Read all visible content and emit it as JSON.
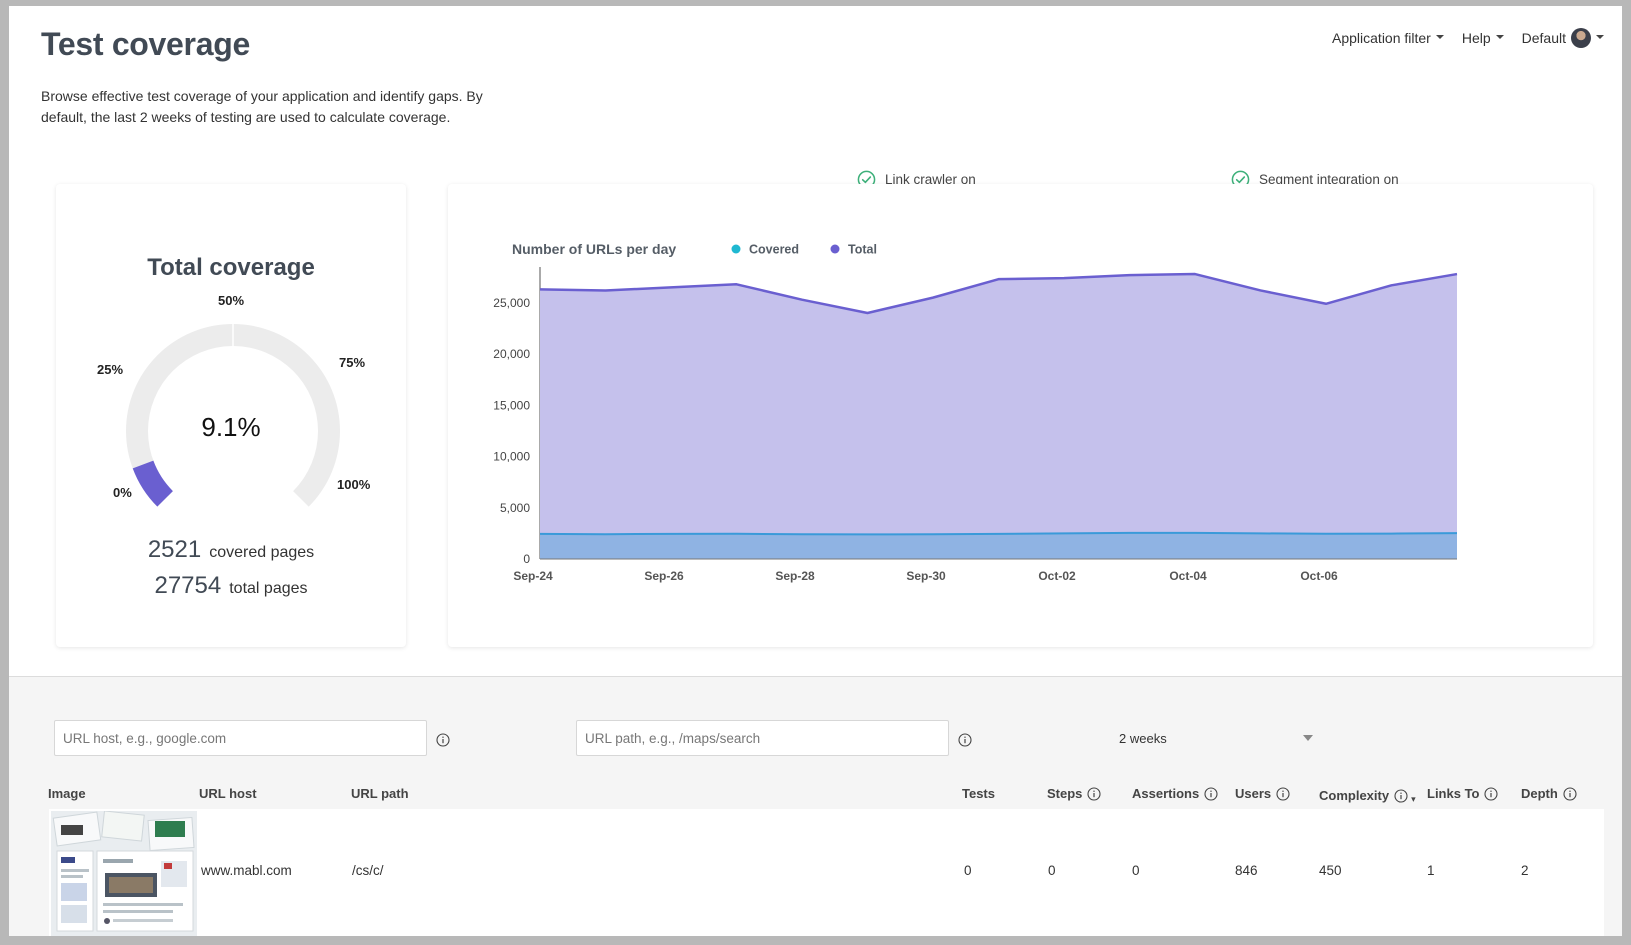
{
  "header": {
    "title": "Test coverage",
    "nav": {
      "app_filter": "Application filter",
      "help": "Help",
      "workspace": "Default"
    }
  },
  "description": "Browse effective test coverage of your application and identify gaps. By default, the last 2 weeks of testing are used to calculate coverage.",
  "status": {
    "link_crawler": "Link crawler on",
    "segment": "Segment integration on"
  },
  "coverage": {
    "title": "Total coverage",
    "percent_label": "9.1%",
    "percent_value": 9.1,
    "ticks": [
      "0%",
      "25%",
      "50%",
      "75%",
      "100%"
    ],
    "covered_count": "2521",
    "covered_label": "covered pages",
    "total_count": "27754",
    "total_label": "total pages"
  },
  "colors": {
    "accent": "#6a5fd0",
    "total_fill": "#c5c1ec",
    "covered_fill": "#8fb3e3",
    "covered_line": "#3a9ad9",
    "covered_legend": "#1fb8d1",
    "gauge_track": "#ececec",
    "check_green": "#3db07a"
  },
  "chart_data": {
    "type": "area",
    "title": "Number of URLs per day",
    "xlabel": "",
    "ylabel": "",
    "ylim": [
      0,
      28000
    ],
    "yticks": [
      0,
      5000,
      10000,
      15000,
      20000,
      25000
    ],
    "ytick_labels": [
      "0",
      "5,000",
      "10,000",
      "15,000",
      "20,000",
      "25,000"
    ],
    "x": [
      "2023-09-24",
      "2023-09-25",
      "2023-09-26",
      "2023-09-27",
      "2023-09-28",
      "2023-09-29",
      "2023-09-30",
      "2023-10-01",
      "2023-10-02",
      "2023-10-03",
      "2023-10-04",
      "2023-10-05",
      "2023-10-06",
      "2023-10-07",
      "2023-10-08"
    ],
    "xtick_labels": [
      "Sep-24",
      "Sep-26",
      "Sep-28",
      "Sep-30",
      "Oct-02",
      "Oct-04",
      "Oct-06"
    ],
    "xtick_index": [
      0,
      2,
      4,
      6,
      8,
      10,
      12
    ],
    "legend_position": "top",
    "series": [
      {
        "name": "Covered",
        "values": [
          2450,
          2420,
          2450,
          2460,
          2420,
          2400,
          2410,
          2450,
          2500,
          2550,
          2550,
          2500,
          2460,
          2480,
          2520
        ]
      },
      {
        "name": "Total",
        "values": [
          26300,
          26200,
          26500,
          26800,
          25300,
          24000,
          25500,
          27300,
          27400,
          27700,
          27800,
          26200,
          24900,
          26700,
          27800
        ]
      }
    ]
  },
  "filters": {
    "host_placeholder": "URL host, e.g., google.com",
    "path_placeholder": "URL path, e.g., /maps/search",
    "period": "2 weeks"
  },
  "table": {
    "headers": {
      "image": "Image",
      "host": "URL host",
      "path": "URL path",
      "tests": "Tests",
      "steps": "Steps",
      "assertions": "Assertions",
      "users": "Users",
      "complexity": "Complexity",
      "links_to": "Links To",
      "depth": "Depth"
    },
    "rows": [
      {
        "host": "www.mabl.com",
        "path": "/cs/c/",
        "tests": "0",
        "steps": "0",
        "assertions": "0",
        "users": "846",
        "complexity": "450",
        "links_to": "1",
        "depth": "2"
      }
    ]
  }
}
